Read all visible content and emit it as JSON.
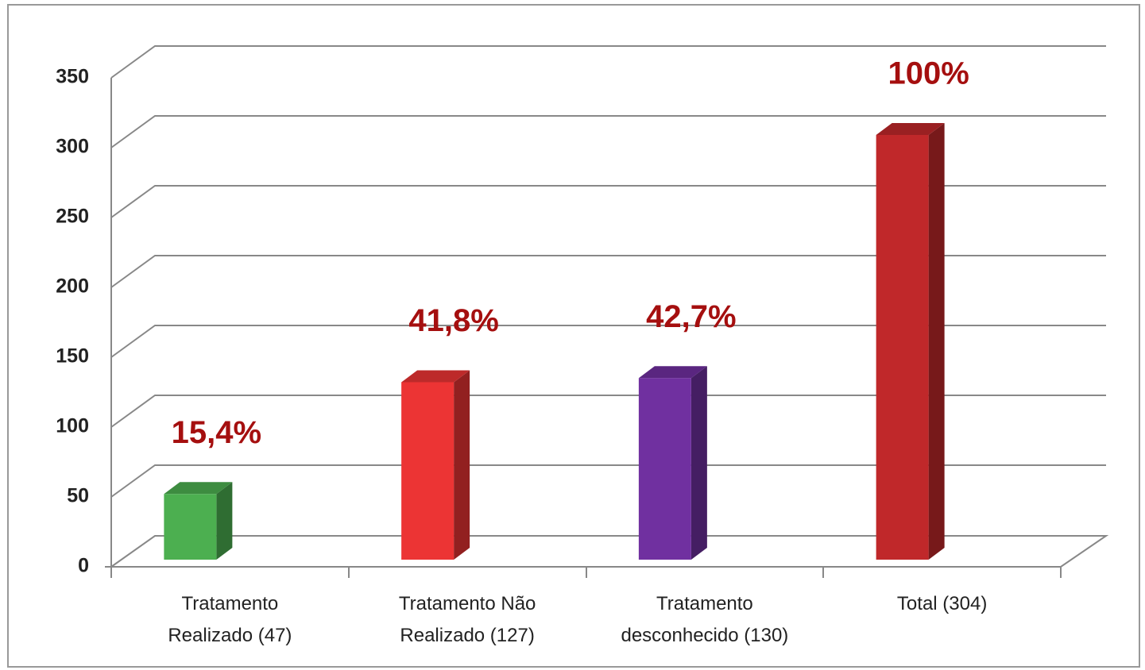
{
  "chart_data": {
    "type": "bar3d",
    "categories": [
      [
        "Tratamento",
        "Realizado (47)"
      ],
      [
        "Tratamento Não",
        "Realizado (127)"
      ],
      [
        "Tratamento",
        "desconhecido (130)"
      ],
      [
        "Total (304)"
      ]
    ],
    "values": [
      47,
      127,
      130,
      304
    ],
    "colors": [
      "#4caf50",
      "#ec3434",
      "#7030a0",
      "#c0282a"
    ],
    "annotations": [
      "15,4%",
      "41,8%",
      "42,7%",
      "100%"
    ],
    "ylim": [
      0,
      350
    ],
    "yticks": [
      0,
      50,
      100,
      150,
      200,
      250,
      300,
      350
    ],
    "grid": true
  }
}
